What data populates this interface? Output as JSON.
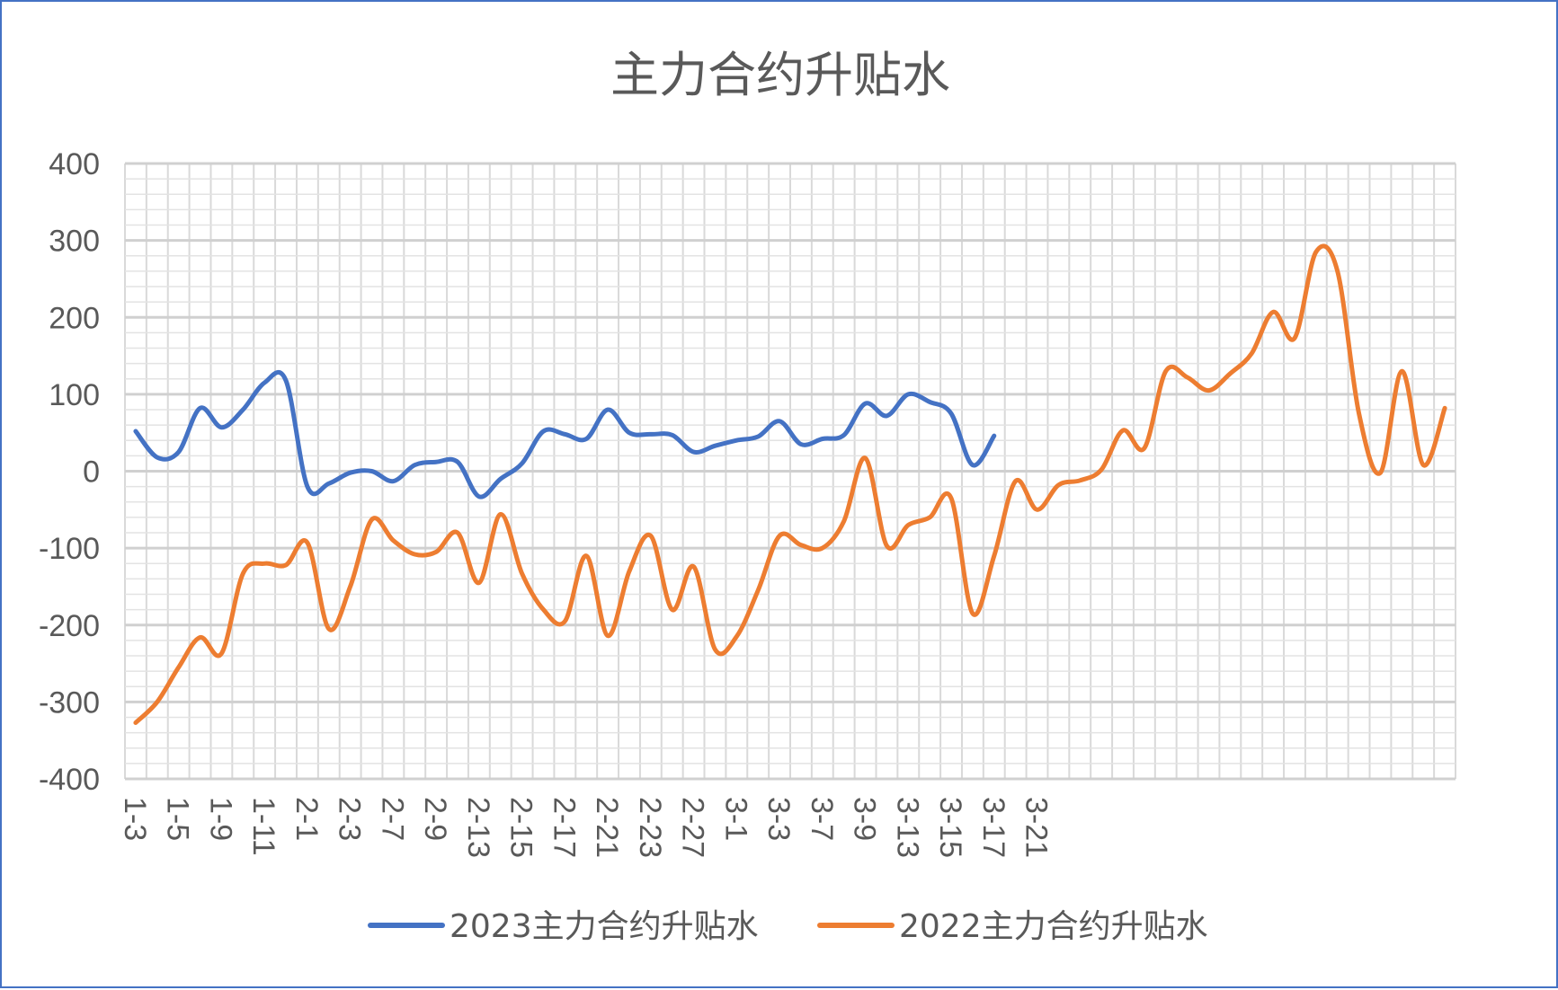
{
  "chart_data": {
    "type": "line",
    "title": "主力合约升贴水",
    "xlabel": "",
    "ylabel": "",
    "ylim": [
      -400,
      400
    ],
    "yticks": [
      400,
      300,
      200,
      100,
      0,
      -100,
      -200,
      -300,
      -400
    ],
    "grid": true,
    "legend_position": "bottom",
    "smooth": true,
    "x_tick_labels": [
      "1-3",
      "1-5",
      "1-9",
      "1-11",
      "2-1",
      "2-3",
      "2-7",
      "2-9",
      "2-13",
      "2-15",
      "2-17",
      "2-21",
      "2-23",
      "2-27",
      "3-1",
      "3-3",
      "3-7",
      "3-9",
      "3-13",
      "3-15",
      "3-17",
      "3-21"
    ],
    "series": [
      {
        "name": "2023主力合约升贴水",
        "color": "#4472c4",
        "values": [
          52,
          18,
          25,
          82,
          57,
          80,
          115,
          118,
          -20,
          -16,
          -2,
          0,
          -13,
          8,
          12,
          12,
          -33,
          -10,
          10,
          52,
          48,
          42,
          80,
          50,
          48,
          47,
          25,
          33,
          40,
          45,
          65,
          35,
          42,
          47,
          88,
          72,
          100,
          90,
          75,
          8,
          46
        ]
      },
      {
        "name": "2022主力合约升贴水",
        "color": "#ed7d31",
        "values": [
          -327,
          -300,
          -255,
          -216,
          -237,
          -133,
          -120,
          -122,
          -93,
          -205,
          -150,
          -63,
          -90,
          -108,
          -105,
          -80,
          -145,
          -56,
          -133,
          -180,
          -195,
          -110,
          -214,
          -130,
          -84,
          -180,
          -124,
          -232,
          -215,
          -155,
          -84,
          -96,
          -100,
          -65,
          17,
          -97,
          -70,
          -60,
          -35,
          -185,
          -110,
          -13,
          -50,
          -18,
          -12,
          2,
          53,
          30,
          130,
          122,
          105,
          127,
          153,
          207,
          173,
          285,
          260,
          75,
          -2,
          130,
          8,
          82
        ]
      }
    ]
  }
}
